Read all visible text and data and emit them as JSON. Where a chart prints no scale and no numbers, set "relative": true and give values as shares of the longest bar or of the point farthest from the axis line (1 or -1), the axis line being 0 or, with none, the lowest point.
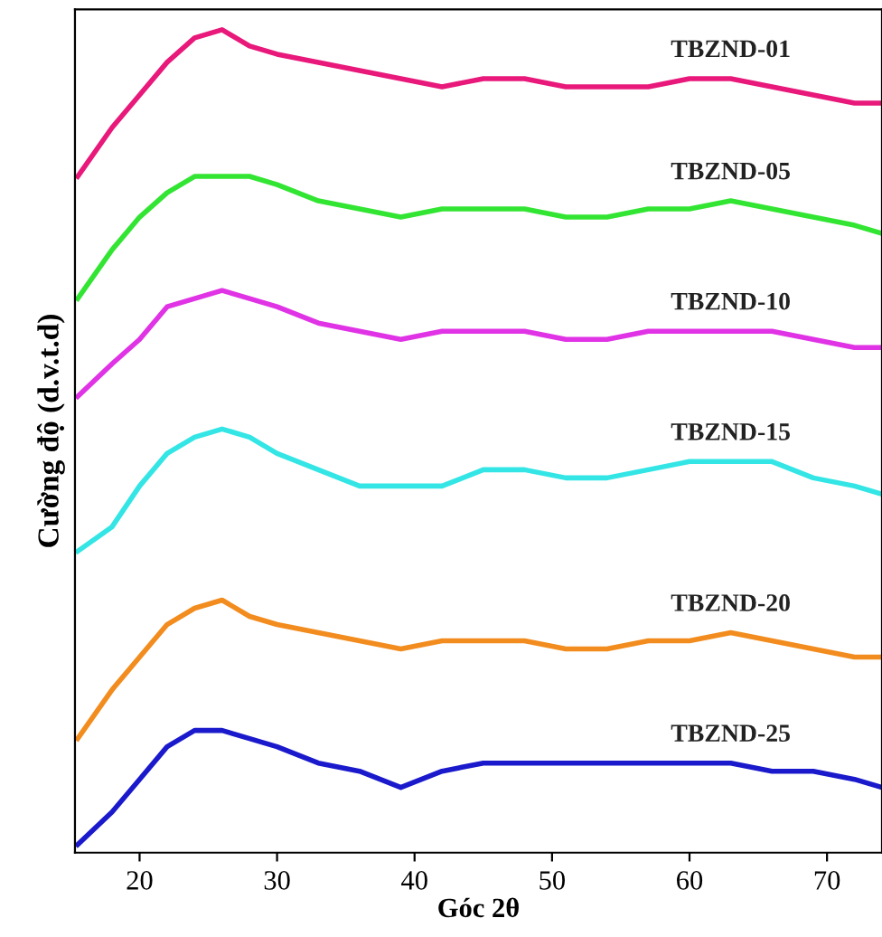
{
  "chart_data": {
    "type": "line",
    "relative": true,
    "xlabel": "Góc 2θ",
    "ylabel": "Cường độ (d.v.t.d)",
    "x": [
      15.5,
      18,
      20,
      22,
      24,
      26,
      28,
      30,
      33,
      36,
      39,
      42,
      45,
      48,
      51,
      54,
      57,
      60,
      63,
      66,
      69,
      72,
      74
    ],
    "xlim": [
      15.3,
      74
    ],
    "xticks": [
      20,
      30,
      40,
      50,
      60,
      70
    ],
    "grid": false,
    "legend": false,
    "series": [
      {
        "name": "TBZND-01",
        "color": "#e8197a",
        "values": [
          0.82,
          0.88,
          0.92,
          0.96,
          0.99,
          1.0,
          0.98,
          0.97,
          0.96,
          0.95,
          0.94,
          0.93,
          0.94,
          0.94,
          0.93,
          0.93,
          0.93,
          0.94,
          0.94,
          0.93,
          0.92,
          0.91,
          0.91
        ]
      },
      {
        "name": "TBZND-05",
        "color": "#33e533",
        "values": [
          0.67,
          0.73,
          0.77,
          0.8,
          0.82,
          0.82,
          0.82,
          0.81,
          0.79,
          0.78,
          0.77,
          0.78,
          0.78,
          0.78,
          0.77,
          0.77,
          0.78,
          0.78,
          0.79,
          0.78,
          0.77,
          0.76,
          0.75
        ]
      },
      {
        "name": "TBZND-10",
        "color": "#e033e5",
        "values": [
          0.55,
          0.59,
          0.62,
          0.66,
          0.67,
          0.68,
          0.67,
          0.66,
          0.64,
          0.63,
          0.62,
          0.63,
          0.63,
          0.63,
          0.62,
          0.62,
          0.63,
          0.63,
          0.63,
          0.63,
          0.62,
          0.61,
          0.61
        ]
      },
      {
        "name": "TBZND-15",
        "color": "#33e5e5",
        "values": [
          0.36,
          0.39,
          0.44,
          0.48,
          0.5,
          0.51,
          0.5,
          0.48,
          0.46,
          0.44,
          0.44,
          0.44,
          0.46,
          0.46,
          0.45,
          0.45,
          0.46,
          0.47,
          0.47,
          0.47,
          0.45,
          0.44,
          0.43
        ]
      },
      {
        "name": "TBZND-20",
        "color": "#f28c1e",
        "values": [
          0.13,
          0.19,
          0.23,
          0.27,
          0.29,
          0.3,
          0.28,
          0.27,
          0.26,
          0.25,
          0.24,
          0.25,
          0.25,
          0.25,
          0.24,
          0.24,
          0.25,
          0.25,
          0.26,
          0.25,
          0.24,
          0.23,
          0.23
        ]
      },
      {
        "name": "TBZND-25",
        "color": "#1a1acc",
        "values": [
          0.0,
          0.04,
          0.08,
          0.12,
          0.14,
          0.14,
          0.13,
          0.12,
          0.1,
          0.09,
          0.07,
          0.09,
          0.1,
          0.1,
          0.1,
          0.1,
          0.1,
          0.1,
          0.1,
          0.09,
          0.09,
          0.08,
          0.07
        ]
      }
    ]
  }
}
